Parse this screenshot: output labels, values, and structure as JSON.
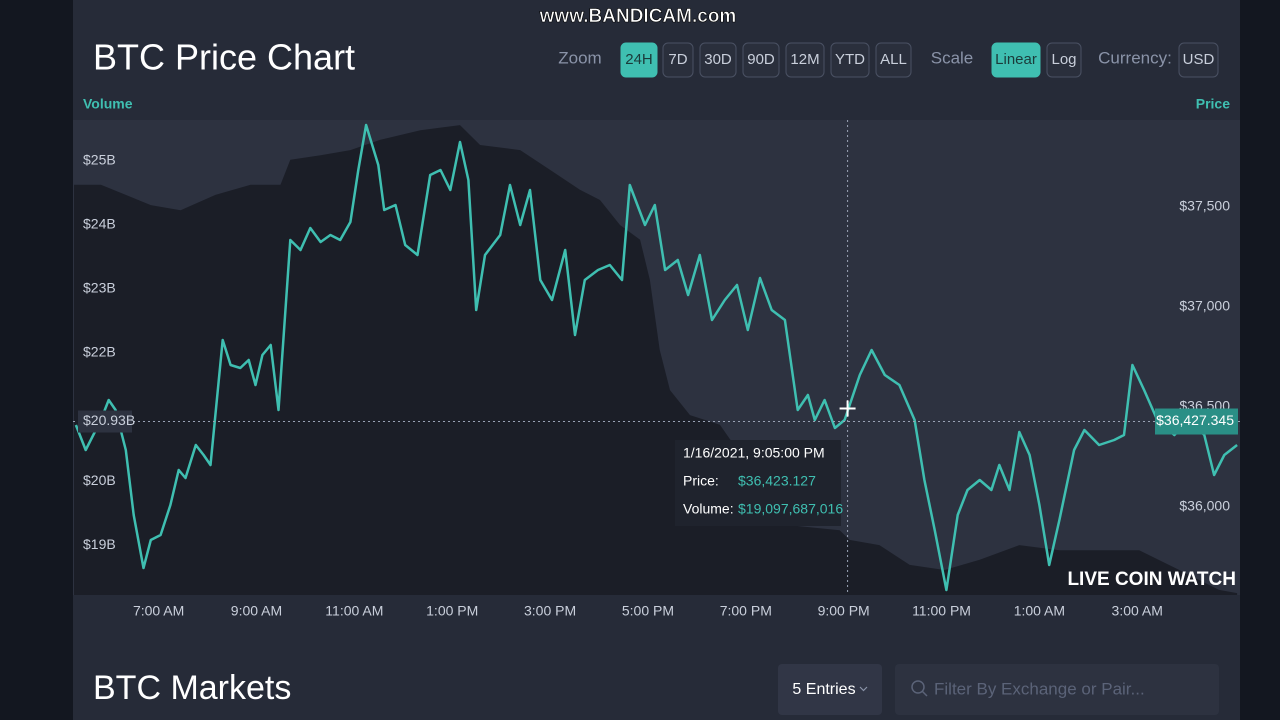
{
  "watermark": "www.BANDICAM.com",
  "header": {
    "title": "BTC Price Chart",
    "zoom_label": "Zoom",
    "zoom_options": [
      "24H",
      "7D",
      "30D",
      "90D",
      "12M",
      "YTD",
      "ALL"
    ],
    "scale_label": "Scale",
    "scale_options": [
      "Linear",
      "Log"
    ],
    "currency_label": "Currency:",
    "currency": "USD"
  },
  "chart_data": {
    "type": "line",
    "y_label": "Volume",
    "y2_label": "Price",
    "xlim": [
      5.25,
      29.1
    ],
    "xticks": [
      {
        "value": 7,
        "label": "7:00 AM"
      },
      {
        "value": 9,
        "label": "9:00 AM"
      },
      {
        "value": 11,
        "label": "11:00 AM"
      },
      {
        "value": 13,
        "label": "1:00 PM"
      },
      {
        "value": 15,
        "label": "3:00 PM"
      },
      {
        "value": 17,
        "label": "5:00 PM"
      },
      {
        "value": 19,
        "label": "7:00 PM"
      },
      {
        "value": 21,
        "label": "9:00 PM"
      },
      {
        "value": 23,
        "label": "11:00 PM"
      },
      {
        "value": 25,
        "label": "1:00 AM"
      },
      {
        "value": 27,
        "label": "3:00 AM"
      }
    ],
    "ylim": [
      18.22,
      25.64
    ],
    "yticks": [
      {
        "value": 19,
        "label": "$19B"
      },
      {
        "value": 20,
        "label": "$20B"
      },
      {
        "value": 22,
        "label": "$22B"
      },
      {
        "value": 23,
        "label": "$23B"
      },
      {
        "value": 24,
        "label": "$24B"
      },
      {
        "value": 25,
        "label": "$25B"
      }
    ],
    "y2lim": [
      35560,
      37935
    ],
    "y2ticks": [
      {
        "value": 36000,
        "label": "$36,000"
      },
      {
        "value": 36500,
        "label": "$36,500"
      },
      {
        "value": 37000,
        "label": "$37,000"
      },
      {
        "value": 37500,
        "label": "$37,500"
      }
    ],
    "series": [
      {
        "name": "Volume",
        "axis": "y",
        "color": "#1b1e27",
        "x": [
          5.27,
          5.82,
          6.33,
          6.84,
          7.45,
          8.16,
          8.88,
          9.49,
          9.69,
          10.31,
          10.92,
          11.53,
          12.35,
          13.16,
          13.57,
          14.39,
          15,
          15.61,
          16.02,
          16.43,
          16.84,
          17.04,
          17.24,
          17.45,
          17.86,
          18.47,
          19.9,
          20.92,
          21.12,
          21.73,
          22.35,
          23.06,
          23.78,
          24.59,
          25.41,
          26.22,
          27.04,
          27.86,
          28.67,
          29.04
        ],
        "values": [
          24.63,
          24.63,
          24.47,
          24.31,
          24.23,
          24.47,
          24.63,
          24.63,
          25.02,
          25.09,
          25.17,
          25.33,
          25.48,
          25.56,
          25.25,
          25.17,
          24.86,
          24.55,
          24.39,
          24,
          23.77,
          23.14,
          22.05,
          21.42,
          21.03,
          20.88,
          19.31,
          19.23,
          19.08,
          19,
          18.69,
          18.61,
          18.77,
          19,
          18.92,
          18.92,
          18.92,
          18.61,
          18.3,
          18.25
        ]
      },
      {
        "name": "Price",
        "axis": "y2",
        "color": "#3fbfb1",
        "x": [
          5.31,
          5.51,
          5.82,
          5.98,
          6.12,
          6.33,
          6.49,
          6.69,
          6.84,
          7.04,
          7.24,
          7.41,
          7.55,
          7.76,
          7.92,
          8.06,
          8.31,
          8.47,
          8.67,
          8.84,
          8.98,
          9.12,
          9.29,
          9.45,
          9.69,
          9.9,
          10.1,
          10.31,
          10.51,
          10.71,
          10.92,
          11.08,
          11.24,
          11.49,
          11.61,
          11.84,
          12.04,
          12.29,
          12.55,
          12.76,
          12.96,
          13.16,
          13.33,
          13.49,
          13.67,
          13.98,
          14.18,
          14.39,
          14.59,
          14.8,
          15.04,
          15.31,
          15.51,
          15.71,
          15.98,
          16.22,
          16.47,
          16.63,
          16.94,
          17.14,
          17.35,
          17.61,
          17.82,
          18.06,
          18.31,
          18.57,
          18.82,
          19.04,
          19.29,
          19.53,
          19.8,
          20.06,
          20.27,
          20.41,
          20.61,
          20.82,
          21.02,
          21.33,
          21.57,
          21.84,
          22.14,
          22.45,
          22.65,
          22.86,
          23.1,
          23.33,
          23.53,
          23.78,
          24.02,
          24.18,
          24.39,
          24.59,
          24.8,
          25,
          25.2,
          25.41,
          25.71,
          25.92,
          26.22,
          26.53,
          26.73,
          26.9,
          27.14,
          27.41,
          27.76,
          28.06,
          28.37,
          28.57,
          28.78,
          29.04
        ],
        "values": [
          36410,
          36285,
          36435,
          36535,
          36485,
          36285,
          35960,
          35695,
          35835,
          35860,
          36010,
          36185,
          36145,
          36310,
          36260,
          36210,
          36835,
          36710,
          36695,
          36735,
          36610,
          36760,
          36810,
          36485,
          37335,
          37285,
          37395,
          37325,
          37360,
          37335,
          37425,
          37685,
          37910,
          37710,
          37485,
          37510,
          37310,
          37260,
          37660,
          37685,
          37585,
          37825,
          37635,
          36985,
          37260,
          37360,
          37610,
          37410,
          37585,
          37135,
          37035,
          37285,
          36860,
          37135,
          37185,
          37210,
          37135,
          37610,
          37410,
          37510,
          37185,
          37235,
          37060,
          37260,
          36935,
          37035,
          37110,
          36885,
          37145,
          36985,
          36935,
          36485,
          36560,
          36435,
          36535,
          36395,
          36435,
          36660,
          36785,
          36660,
          36610,
          36435,
          36135,
          35885,
          35585,
          35960,
          36085,
          36135,
          36085,
          36210,
          36085,
          36375,
          36260,
          36010,
          35710,
          35935,
          36285,
          36385,
          36310,
          36335,
          36360,
          36710,
          36585,
          36435,
          36360,
          36435,
          36360,
          36160,
          36260,
          36310
        ]
      }
    ],
    "crosshair": {
      "x": 21.08,
      "y": 20.93,
      "y_label": "$20.93B",
      "y2": 36427.345,
      "y2_label": "$36,427.345"
    },
    "tooltip": {
      "title": "1/16/2021, 9:05:00 PM",
      "rows": [
        {
          "label": "Price:",
          "value": "$36,423.127"
        },
        {
          "label": "Volume:",
          "value": "$19,097,687,016"
        }
      ]
    },
    "logo": "LIVE COIN WATCH"
  },
  "markets": {
    "title": "BTC Markets",
    "entries": "5 Entries",
    "filter_placeholder": "Filter By Exchange or Pair..."
  }
}
